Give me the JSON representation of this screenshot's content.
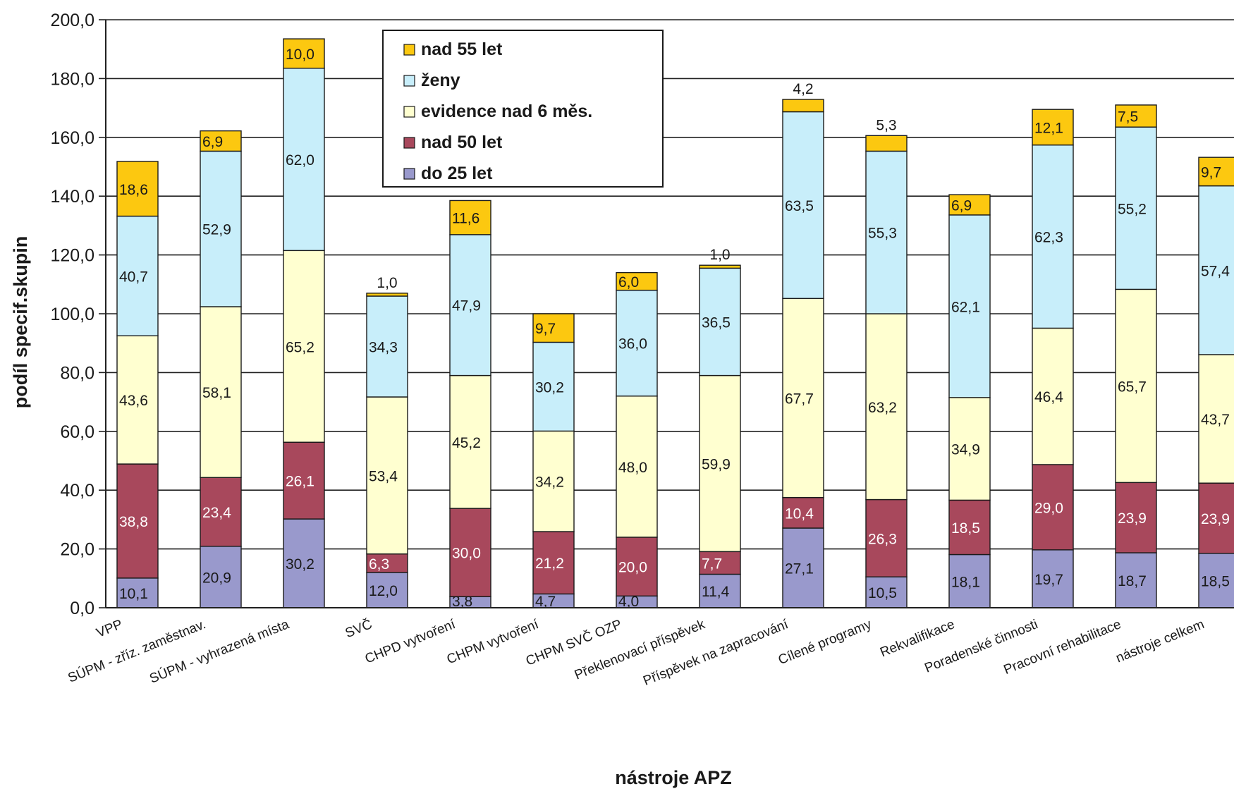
{
  "chart_data": {
    "type": "bar",
    "stacked": true,
    "title": "",
    "xlabel": "nástroje APZ",
    "ylabel": "podíl specif.skupin",
    "ylim": [
      0,
      200
    ],
    "yticks": [
      "0,0",
      "20,0",
      "40,0",
      "60,0",
      "80,0",
      "100,0",
      "120,0",
      "140,0",
      "160,0",
      "180,0",
      "200,0"
    ],
    "grid": true,
    "legend_position": "top-center",
    "categories": [
      "VPP",
      "SÚPM - zříz. zaměstnav.",
      "SÚPM - vyhrazená místa",
      "SVČ",
      "CHPD vytvoření",
      "CHPM vytvoření",
      "CHPM SVČ OZP",
      "Překlenovací příspěvek",
      "Příspěvek na zapracování",
      "Cílené programy",
      "Rekvalifikace",
      "Poradenské činnosti",
      "Pracovní rehabilitace",
      "nástroje celkem"
    ],
    "series": [
      {
        "name": "do 25 let",
        "color": "#9999cc",
        "values": [
          10.1,
          20.9,
          30.2,
          12.0,
          3.8,
          4.7,
          4.0,
          11.4,
          27.1,
          10.5,
          18.1,
          19.7,
          18.7,
          18.5
        ],
        "labels": [
          "10,1",
          "20,9",
          "30,2",
          "12,0",
          "3,8",
          "4,7",
          "4,0",
          "11,4",
          "27,1",
          "10,5",
          "18,1",
          "19,7",
          "18,7",
          "18,5"
        ]
      },
      {
        "name": "nad 50 let",
        "color": "#a8485c",
        "values": [
          38.8,
          23.4,
          26.1,
          6.3,
          30.0,
          21.2,
          20.0,
          7.7,
          10.4,
          26.3,
          18.5,
          29.0,
          23.9,
          23.9
        ],
        "labels": [
          "38,8",
          "23,4",
          "26,1",
          "6,3",
          "30,0",
          "21,2",
          "20,0",
          "7,7",
          "10,4",
          "26,3",
          "18,5",
          "29,0",
          "23,9",
          "23,9"
        ]
      },
      {
        "name": "evidence nad 6 měs.",
        "color": "#ffffd0",
        "values": [
          43.6,
          58.1,
          65.2,
          53.4,
          45.2,
          34.2,
          48.0,
          59.9,
          67.7,
          63.2,
          34.9,
          46.4,
          65.7,
          43.7
        ],
        "labels": [
          "43,6",
          "58,1",
          "65,2",
          "53,4",
          "45,2",
          "34,2",
          "48,0",
          "59,9",
          "67,7",
          "63,2",
          "34,9",
          "46,4",
          "65,7",
          "43,7"
        ]
      },
      {
        "name": "ženy",
        "color": "#c8eefa",
        "values": [
          40.7,
          52.9,
          62.0,
          34.3,
          47.9,
          30.2,
          36.0,
          36.5,
          63.5,
          55.3,
          62.1,
          62.3,
          55.2,
          57.4
        ],
        "labels": [
          "40,7",
          "52,9",
          "62,0",
          "34,3",
          "47,9",
          "30,2",
          "36,0",
          "36,5",
          "63,5",
          "55,3",
          "62,1",
          "62,3",
          "55,2",
          "57,4"
        ]
      },
      {
        "name": "nad 55 let",
        "color": "#fcc810",
        "values": [
          18.6,
          6.9,
          10.0,
          1.0,
          11.6,
          9.7,
          6.0,
          1.0,
          4.2,
          5.3,
          6.9,
          12.1,
          7.5,
          9.7
        ],
        "labels": [
          "18,6",
          "6,9",
          "10,0",
          "1,0",
          "11,6",
          "9,7",
          "6,0",
          "1,0",
          "4,2",
          "5,3",
          "6,9",
          "12,1",
          "7,5",
          "9,7"
        ]
      }
    ],
    "legend_order": [
      "nad 55 let",
      "ženy",
      "evidence nad 6 měs.",
      "nad 50 let",
      "do 25 let"
    ]
  }
}
